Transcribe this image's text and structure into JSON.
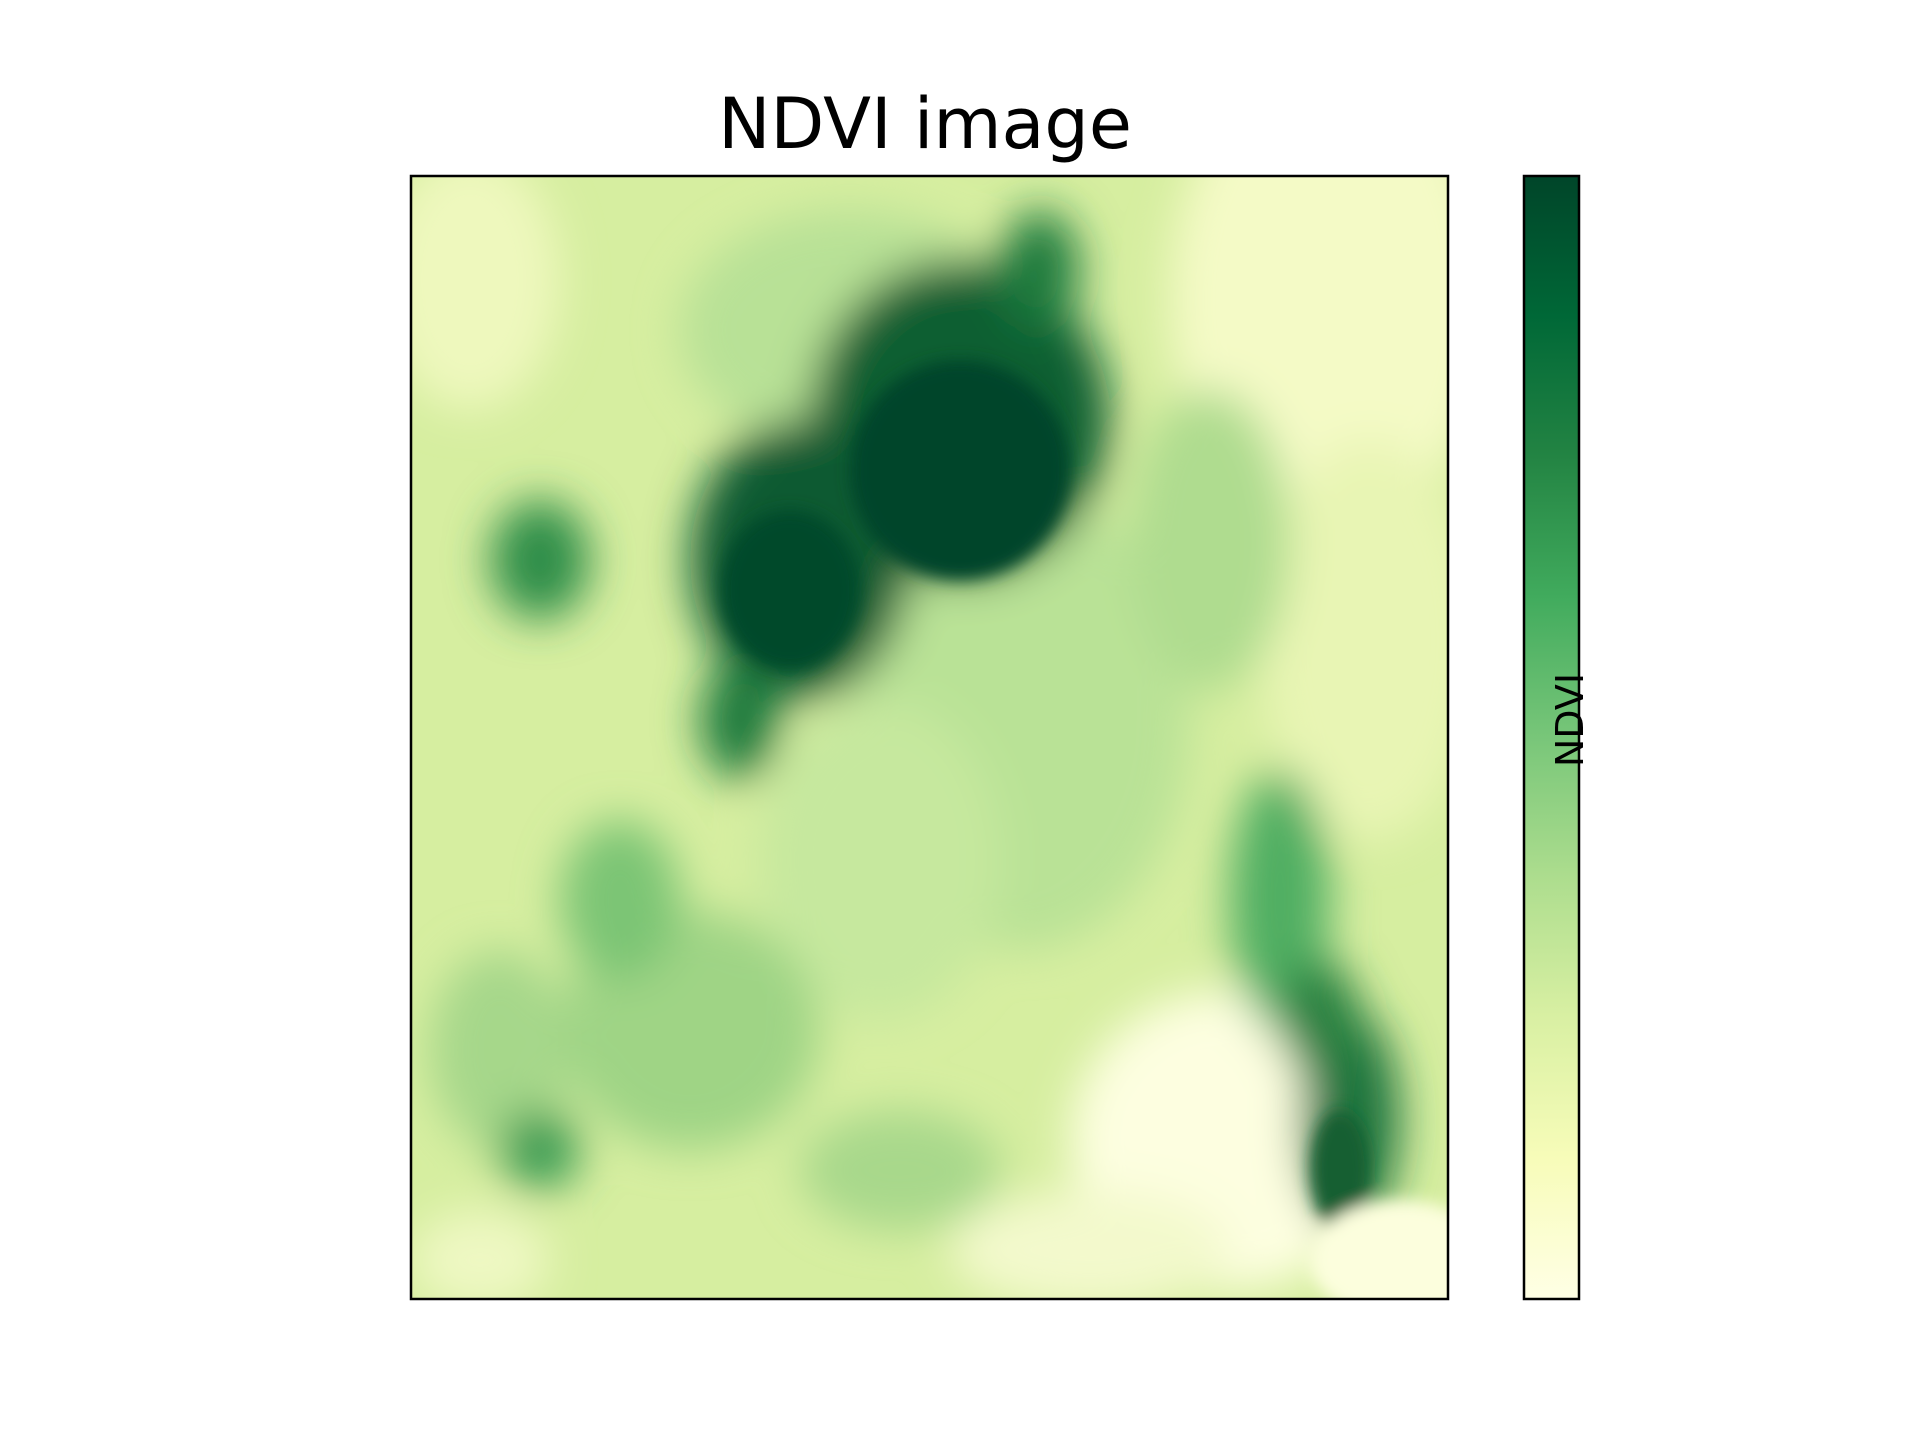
{
  "chart_data": {
    "type": "heatmap",
    "title": "NDVI image",
    "xlabel": "",
    "ylabel": "",
    "colorbar": {
      "label": "NDVI",
      "ticks": []
    },
    "colormap": [
      "#ffffe5",
      "#f7fcb9",
      "#d9f0a3",
      "#addd8e",
      "#78c679",
      "#41ab5d",
      "#238443",
      "#006837",
      "#004529"
    ],
    "axes_ticks": "none",
    "grid": false
  }
}
